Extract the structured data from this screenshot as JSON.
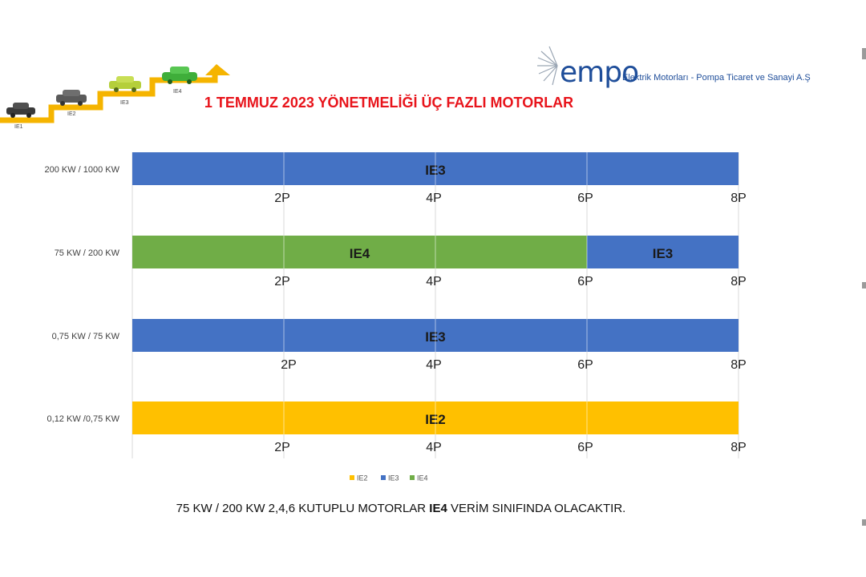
{
  "logo": {
    "word": "empo",
    "tagline": "Elektrik Motorları - Pompa Ticaret ve Sanayi A.Ş"
  },
  "stairs": {
    "labels": [
      "IE1",
      "IE2",
      "IE3",
      "IE4"
    ]
  },
  "chart_data": {
    "type": "bar",
    "orientation": "horizontal-stacked",
    "title": "1 TEMMUZ 2023 YÖNETMELİĞİ ÜÇ FAZLI MOTORLAR",
    "rows": [
      {
        "label": "200 KW / 1000 KW",
        "segments": [
          {
            "series": "IE3",
            "from": 0,
            "to": 8,
            "label": "IE3"
          }
        ],
        "ticks": [
          "2P",
          "4P",
          "6P",
          "8P"
        ]
      },
      {
        "label": "75 KW / 200 KW",
        "segments": [
          {
            "series": "IE4",
            "from": 0,
            "to": 6,
            "label": "IE4"
          },
          {
            "series": "IE3",
            "from": 6,
            "to": 8,
            "label": "IE3"
          }
        ],
        "ticks": [
          "2P",
          "4P",
          "6P",
          "8P"
        ]
      },
      {
        "label": "0,75 KW / 75 KW",
        "segments": [
          {
            "series": "IE3",
            "from": 0,
            "to": 8,
            "label": "IE3"
          }
        ],
        "ticks": [
          "2P",
          "4P",
          "6P",
          "8P"
        ]
      },
      {
        "label": "0,12 KW /0,75 KW",
        "segments": [
          {
            "series": "IE2",
            "from": 0,
            "to": 8,
            "label": "IE2"
          }
        ],
        "ticks": [
          "2P",
          "4P",
          "6P",
          "8P"
        ]
      }
    ],
    "tick_positions": [
      2,
      4,
      6,
      8
    ],
    "xlim": [
      0,
      8
    ],
    "grid": true,
    "legend": {
      "placement": "bottom",
      "items": [
        "IE2",
        "IE3",
        "IE4"
      ]
    },
    "colors": {
      "IE2": "#ffc000",
      "IE3": "#4472c4",
      "IE4": "#70ad47"
    }
  },
  "footnote": {
    "before": "75 KW / 200 KW 2,4,6 KUTUPLU MOTORLAR ",
    "bold": "IE4",
    "after": " VERİM SINIFINDA OLACAKTIR."
  }
}
